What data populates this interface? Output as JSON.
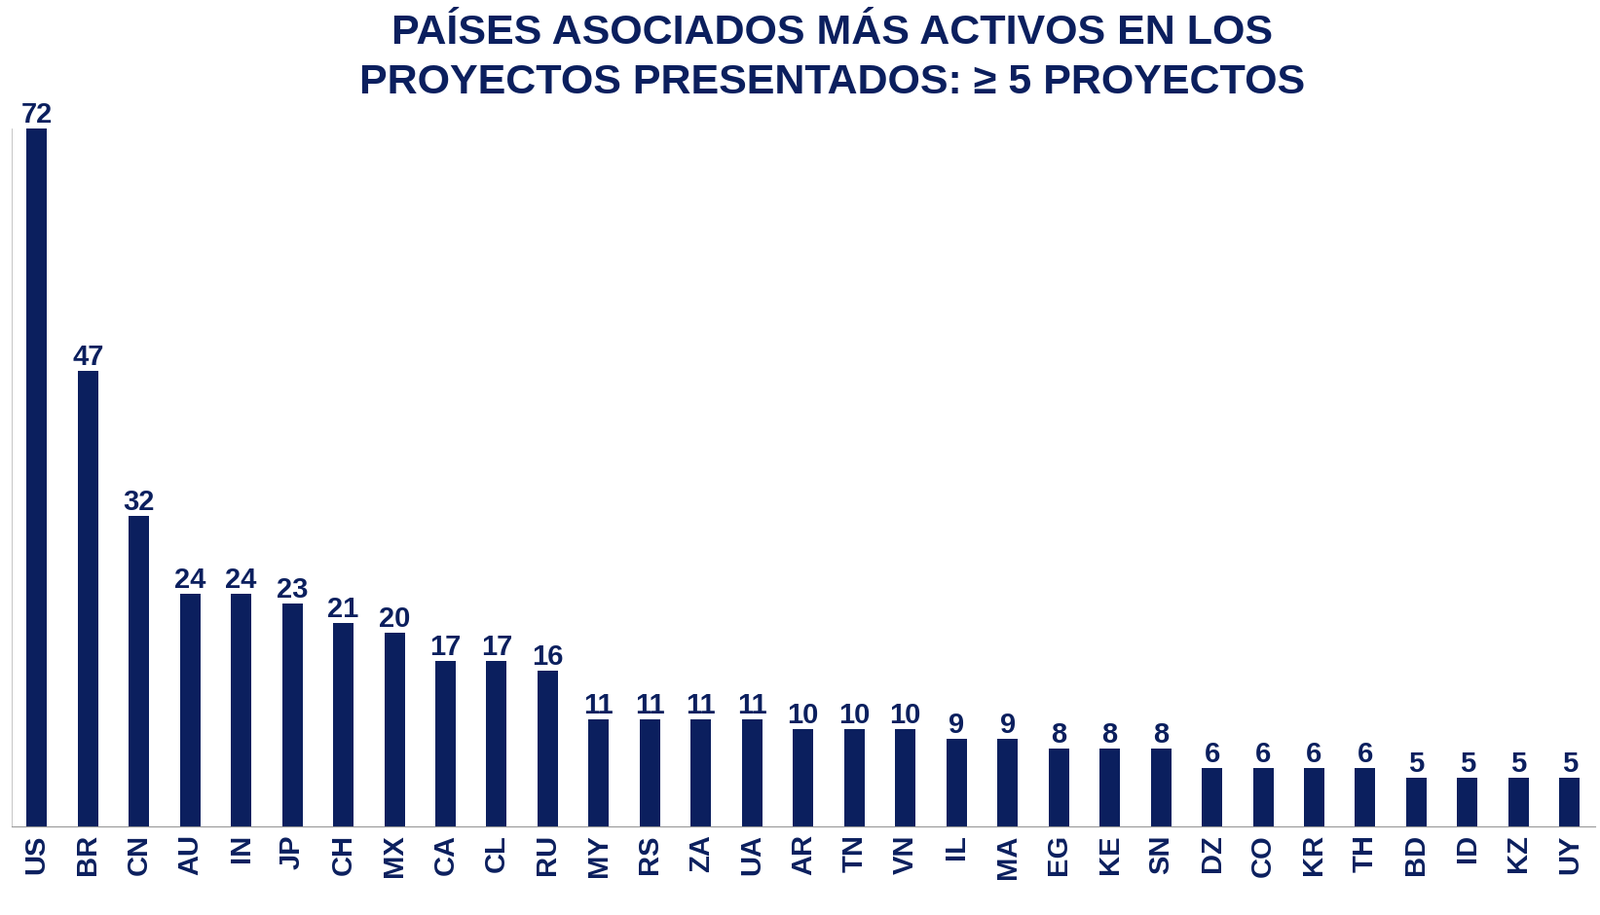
{
  "chart_data": {
    "type": "bar",
    "title": "PAÍSES ASOCIADOS MÁS ACTIVOS EN LOS\nPROYECTOS PRESENTADOS: ≥ 5 PROYECTOS",
    "categories": [
      "US",
      "BR",
      "CN",
      "AU",
      "IN",
      "JP",
      "CH",
      "MX",
      "CA",
      "CL",
      "RU",
      "MY",
      "RS",
      "ZA",
      "UA",
      "AR",
      "TN",
      "VN",
      "IL",
      "MA",
      "EG",
      "KE",
      "SN",
      "DZ",
      "CO",
      "KR",
      "TH",
      "BD",
      "ID",
      "KZ",
      "UY"
    ],
    "values": [
      72,
      47,
      32,
      24,
      24,
      23,
      21,
      20,
      17,
      17,
      16,
      11,
      11,
      11,
      11,
      10,
      10,
      10,
      9,
      9,
      8,
      8,
      8,
      6,
      6,
      6,
      6,
      5,
      5,
      5,
      5
    ],
    "color": "#0b1f5e",
    "ylim": [
      0,
      72
    ],
    "yticks": [],
    "grid": false,
    "data_labels": true,
    "tick_labels": "x"
  }
}
